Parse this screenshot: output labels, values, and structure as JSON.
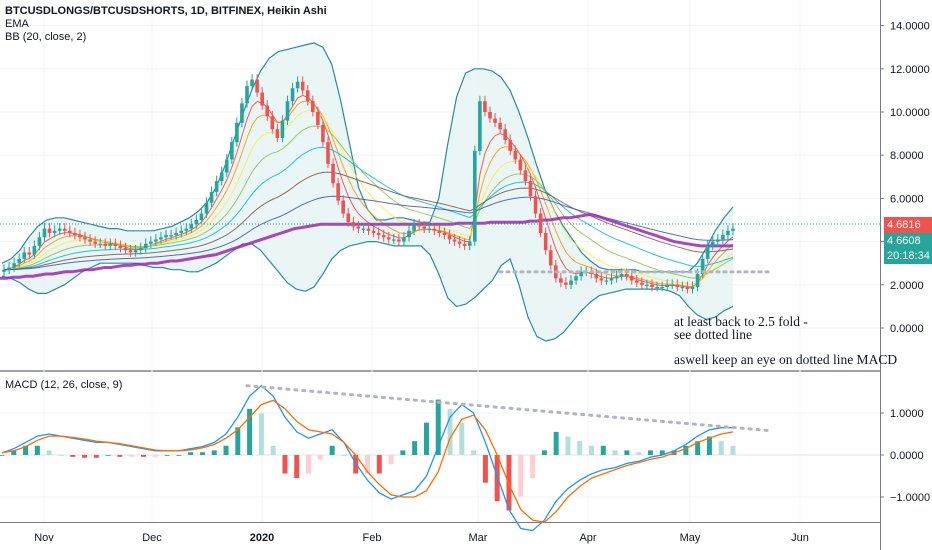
{
  "header": {
    "symbol": "BTCUSDLONGS/BTCUSDSHORTS, 1D, BITFINEX, Heikin Ashi",
    "indicator_ema": "EMA",
    "indicator_bb": "BB (20, close, 2)"
  },
  "macd_header": "MACD (12, 26, close, 9)",
  "annotations": {
    "line1": "at least back to 2.5 fold -",
    "line2": "see dotted line",
    "line3": "aswell keep an eye on dotted line MACD"
  },
  "price_tags": {
    "last": "4.6816",
    "close": "4.6608",
    "countdown": "20:18:34"
  },
  "colors": {
    "up_candle": "#26a69a",
    "down_candle": "#ef5350",
    "bb_band": "#2a8aa5",
    "bb_fill": "#e8f4f5",
    "ema_purple": "#9c27b0",
    "macd_line": "#2196f3",
    "signal_line": "#ff6d00",
    "last_tag": "#ef5350",
    "close_tag": "#26a69a",
    "countdown_tag": "#26a69a",
    "dotted": "#b2b5be"
  },
  "chart_data": [
    {
      "type": "candlestick",
      "title": "BTCUSDLONGS/BTCUSDSHORTS, 1D, BITFINEX, Heikin Ashi",
      "x_ticks": [
        "Nov",
        "Dec",
        "2020",
        "Feb",
        "Mar",
        "Apr",
        "May",
        "Jun"
      ],
      "y_ticks": [
        "14.0000",
        "12.0000",
        "10.0000",
        "8.0000",
        "6.0000",
        "4.0000",
        "2.0000",
        "0.0000"
      ],
      "ylim": [
        -1.5,
        15.3
      ],
      "close_series": [
        2.7,
        2.8,
        3.0,
        3.2,
        3.5,
        3.4,
        3.8,
        4.2,
        4.6,
        4.4,
        4.5,
        4.6,
        4.5,
        4.4,
        4.3,
        4.2,
        4.1,
        4.0,
        3.9,
        3.9,
        3.8,
        3.9,
        3.8,
        3.7,
        3.6,
        3.5,
        3.6,
        3.7,
        3.9,
        4.0,
        4.1,
        4.2,
        4.3,
        4.3,
        4.4,
        4.5,
        4.6,
        4.8,
        5.0,
        5.3,
        5.8,
        6.3,
        6.8,
        7.2,
        7.8,
        8.6,
        9.5,
        10.4,
        11.2,
        11.5,
        10.9,
        10.3,
        9.8,
        9.2,
        8.8,
        9.6,
        10.5,
        11.1,
        11.4,
        11.0,
        10.5,
        10.0,
        9.4,
        8.6,
        7.6,
        6.7,
        5.9,
        5.3,
        4.9,
        4.7,
        4.6,
        4.6,
        4.5,
        4.4,
        4.3,
        4.2,
        4.1,
        4.1,
        4.0,
        4.2,
        4.5,
        4.8,
        4.7,
        4.6,
        4.6,
        4.5,
        4.4,
        4.3,
        4.1,
        4.0,
        3.9,
        3.8,
        4.0,
        8.2,
        10.5,
        10.0,
        9.7,
        9.5,
        9.2,
        8.7,
        8.2,
        7.8,
        7.3,
        6.8,
        6.1,
        5.3,
        4.4,
        3.6,
        2.9,
        2.3,
        2.1,
        2.0,
        2.2,
        2.4,
        2.6,
        2.6,
        2.5,
        2.3,
        2.2,
        2.2,
        2.3,
        2.4,
        2.5,
        2.4,
        2.2,
        2.1,
        2.0,
        2.0,
        1.9,
        1.9,
        1.9,
        2.0,
        2.0,
        1.9,
        1.9,
        1.8,
        1.9,
        2.5,
        3.2,
        3.8,
        4.0,
        4.1,
        4.3,
        4.5,
        4.6
      ],
      "ema_purple": [
        2.3,
        2.3,
        2.35,
        2.35,
        2.4,
        2.4,
        2.45,
        2.5,
        2.5,
        2.55,
        2.6,
        2.6,
        2.65,
        2.7,
        2.7,
        2.75,
        2.8,
        2.8,
        2.85,
        2.9,
        2.9,
        2.95,
        2.95,
        3.0,
        3.0,
        3.05,
        3.1,
        3.1,
        3.15,
        3.2,
        3.25,
        3.3,
        3.35,
        3.4,
        3.5,
        3.6,
        3.7,
        3.8,
        3.9,
        4.0,
        4.1,
        4.2,
        4.3,
        4.4,
        4.5,
        4.6,
        4.65,
        4.7,
        4.75,
        4.8,
        4.8,
        4.8,
        4.8,
        4.8,
        4.8,
        4.8,
        4.8,
        4.8,
        4.8,
        4.8,
        4.8,
        4.8,
        4.8,
        4.8,
        4.8,
        4.8,
        4.8,
        4.8,
        4.8,
        4.8,
        4.85,
        4.85,
        4.85,
        4.85,
        4.85,
        4.9,
        4.9,
        4.9,
        4.9,
        4.9,
        4.9,
        4.95,
        4.95,
        5.0,
        5.0,
        5.05,
        5.1,
        5.1,
        5.15,
        5.2,
        5.25,
        5.2,
        5.1,
        5.0,
        4.9,
        4.8,
        4.7,
        4.6,
        4.5,
        4.4,
        4.3,
        4.2,
        4.1,
        4.0,
        3.95,
        3.9,
        3.85,
        3.8,
        3.8,
        3.8,
        3.8,
        3.8,
        3.8
      ],
      "bb_upper": [
        3.0,
        3.2,
        3.6,
        4.2,
        4.7,
        5.0,
        5.1,
        5.1,
        5.0,
        4.9,
        4.8,
        4.7,
        4.6,
        4.6,
        4.5,
        4.5,
        4.5,
        4.5,
        4.6,
        4.7,
        4.9,
        5.1,
        5.4,
        5.8,
        6.5,
        7.5,
        8.7,
        9.9,
        11.0,
        11.9,
        12.5,
        12.8,
        12.9,
        13.0,
        13.1,
        13.2,
        13.0,
        12.2,
        10.5,
        8.5,
        6.5,
        5.5,
        5.0,
        5.0,
        5.1,
        5.1,
        5.0,
        4.9,
        4.9,
        6.0,
        8.5,
        10.7,
        11.8,
        12.0,
        12.0,
        11.9,
        11.6,
        11.0,
        10.0,
        8.8,
        7.5,
        6.3,
        5.4,
        4.7,
        4.1,
        3.5,
        3.1,
        2.8,
        2.7,
        2.7,
        2.7,
        2.7,
        2.6,
        2.6,
        2.6,
        2.6,
        2.6,
        2.6,
        3.0,
        3.7,
        4.5,
        5.1,
        5.6
      ],
      "bb_lower": [
        2.4,
        2.3,
        2.1,
        1.8,
        1.6,
        1.6,
        1.8,
        2.0,
        2.3,
        2.6,
        2.8,
        3.0,
        3.0,
        3.0,
        3.0,
        3.0,
        2.9,
        2.8,
        2.8,
        2.7,
        2.7,
        2.6,
        2.6,
        2.8,
        3.0,
        3.3,
        3.6,
        3.9,
        3.9,
        3.6,
        3.1,
        2.6,
        2.1,
        1.8,
        1.7,
        1.9,
        2.5,
        3.2,
        3.6,
        3.8,
        3.9,
        4.0,
        4.0,
        3.9,
        3.8,
        3.8,
        3.8,
        3.8,
        3.4,
        2.5,
        1.4,
        1.0,
        1.1,
        1.4,
        1.8,
        2.2,
        2.9,
        3.2,
        2.0,
        0.5,
        -0.4,
        -0.6,
        -0.5,
        -0.2,
        0.3,
        0.8,
        1.2,
        1.5,
        1.6,
        1.7,
        1.8,
        1.8,
        1.8,
        1.8,
        1.8,
        1.7,
        1.5,
        1.0,
        0.6,
        0.4,
        0.5,
        0.8,
        1.0
      ]
    },
    {
      "type": "line",
      "title": "MACD (12, 26, close, 9)",
      "y_ticks": [
        "1.0000",
        "0.0000",
        "−1.0000"
      ],
      "ylim": [
        -1.9,
        1.85
      ],
      "series": [
        {
          "name": "MACD",
          "values": [
            0.05,
            0.15,
            0.3,
            0.45,
            0.5,
            0.45,
            0.4,
            0.35,
            0.3,
            0.3,
            0.25,
            0.2,
            0.15,
            0.1,
            0.1,
            0.1,
            0.15,
            0.2,
            0.3,
            0.5,
            0.9,
            1.4,
            1.65,
            1.4,
            0.9,
            0.55,
            0.4,
            0.5,
            0.6,
            0.3,
            -0.2,
            -0.6,
            -0.9,
            -1.05,
            -0.95,
            -0.85,
            -0.5,
            0.2,
            0.9,
            1.2,
            1.0,
            0.3,
            -0.5,
            -1.3,
            -1.75,
            -1.8,
            -1.55,
            -1.1,
            -0.8,
            -0.6,
            -0.45,
            -0.35,
            -0.3,
            -0.2,
            -0.15,
            -0.05,
            0.0,
            0.1,
            0.25,
            0.45,
            0.6,
            0.65,
            0.65
          ]
        },
        {
          "name": "Signal",
          "values": [
            0.05,
            0.1,
            0.2,
            0.35,
            0.45,
            0.45,
            0.42,
            0.38,
            0.33,
            0.3,
            0.27,
            0.22,
            0.17,
            0.12,
            0.1,
            0.1,
            0.12,
            0.17,
            0.25,
            0.4,
            0.6,
            0.9,
            1.2,
            1.3,
            1.1,
            0.8,
            0.6,
            0.55,
            0.5,
            0.3,
            0.0,
            -0.4,
            -0.7,
            -0.95,
            -1.0,
            -1.0,
            -0.85,
            -0.4,
            0.4,
            0.85,
            0.95,
            0.6,
            0.0,
            -0.7,
            -1.3,
            -1.55,
            -1.6,
            -1.35,
            -1.0,
            -0.75,
            -0.55,
            -0.45,
            -0.35,
            -0.25,
            -0.18,
            -0.1,
            -0.05,
            0.05,
            0.15,
            0.3,
            0.4,
            0.5,
            0.55
          ]
        }
      ]
    }
  ]
}
